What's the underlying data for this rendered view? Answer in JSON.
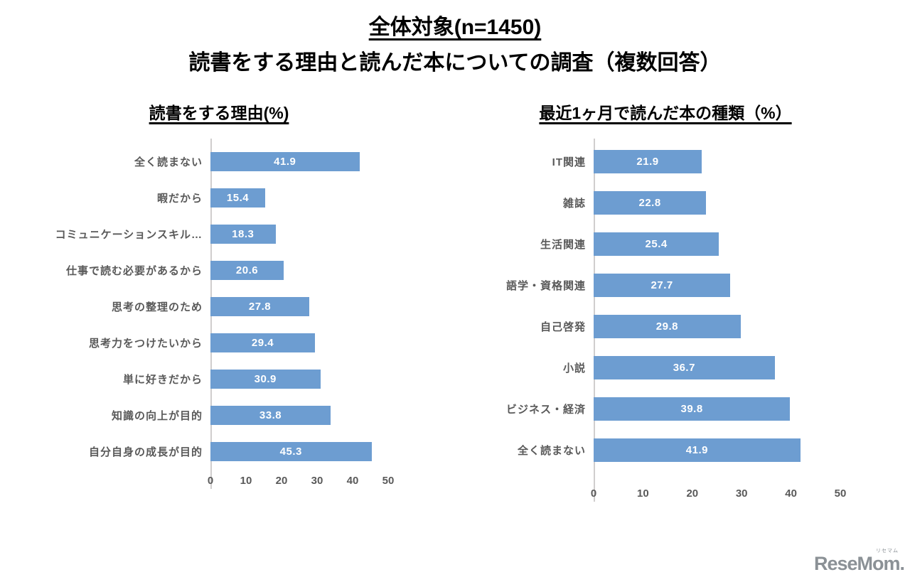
{
  "page": {
    "title_line1": "全体対象(n=1450)",
    "title_line2": "読書をする理由と読んだ本についての調査（複数回答）"
  },
  "chart_data": [
    {
      "type": "bar",
      "orientation": "horizontal",
      "title": "読書をする理由(%)",
      "categories": [
        "全く読まない",
        "暇だから",
        "コミュニケーションスキル…",
        "仕事で読む必要があるから",
        "思考の整理のため",
        "思考力をつけたいから",
        "単に好きだから",
        "知識の向上が目的",
        "自分自身の成長が目的"
      ],
      "values": [
        41.9,
        15.4,
        18.3,
        20.6,
        27.8,
        29.4,
        30.9,
        33.8,
        45.3
      ],
      "xlabel": "",
      "ylabel": "",
      "xlim": [
        0,
        50
      ],
      "xticks": [
        0,
        10,
        20,
        30,
        40,
        50
      ],
      "grid": false,
      "legend": "none",
      "value_labels": "inside-center"
    },
    {
      "type": "bar",
      "orientation": "horizontal",
      "title": "最近1ヶ月で読んだ本の種類（%）",
      "categories": [
        "IT関連",
        "雑誌",
        "生活関連",
        "語学・資格関連",
        "自己啓発",
        "小説",
        "ビジネス・経済",
        "全く読まない"
      ],
      "values": [
        21.9,
        22.8,
        25.4,
        27.7,
        29.8,
        36.7,
        39.8,
        41.9
      ],
      "xlabel": "",
      "ylabel": "",
      "xlim": [
        0,
        50
      ],
      "xticks": [
        0,
        10,
        20,
        30,
        40,
        50
      ],
      "grid": false,
      "legend": "none",
      "value_labels": "inside-center"
    }
  ],
  "colors": {
    "bar": "#6d9dd1",
    "category_label": "#595959",
    "value_label": "#ffffff",
    "axis_line": "#d0cece",
    "title": "#000000",
    "logo": "#8b9196"
  },
  "logo": {
    "text": "ReseMom.",
    "ruby": "リセマム"
  }
}
